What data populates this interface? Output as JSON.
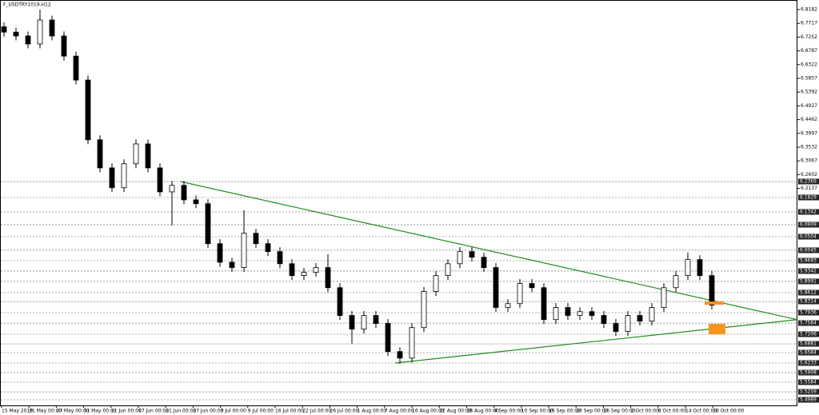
{
  "chart_data": {
    "type": "candlestick",
    "title": "F_USDTRY1019,H12",
    "xlabels": [
      "15 May 2019",
      "21 May 00:00",
      "27 May 00:00",
      "31 May 00:00",
      "11 Jun 00:00",
      "17 Jun 00:00",
      "21 Jun 00:00",
      "27 Jun 00:00",
      "3 Jul 00:00",
      "9 Jul 00:00",
      "16 Jul 00:00",
      "22 Jul 00:00",
      "26 Jul 00:00",
      "1 Aug 00:00",
      "7 Aug 00:00",
      "16 Aug 00:00",
      "22 Aug 00:00",
      "28 Aug 00:00",
      "4 Sep 00:00",
      "10 Sep 00:00",
      "16 Sep 00:00",
      "20 Sep 00:00",
      "26 Sep 00:00",
      "2 Oct 00:00",
      "8 Oct 00:00",
      "14 Oct 00:00",
      "18 Oct 00:00"
    ],
    "open": [
      6.76,
      6.742,
      6.729,
      6.702,
      6.783,
      6.729,
      6.661,
      6.58,
      6.378,
      6.283,
      6.216,
      6.297,
      6.364,
      6.283,
      6.202,
      6.224,
      6.175,
      6.162,
      6.027,
      5.964,
      5.946,
      6.062,
      6.027,
      6.0,
      5.959,
      5.919,
      5.93,
      5.946,
      5.878,
      5.784,
      5.738,
      5.784,
      5.757,
      5.662,
      5.64,
      5.743,
      5.865,
      5.919,
      5.959,
      6.0,
      5.981,
      5.946,
      5.811,
      5.824,
      5.892,
      5.878,
      5.77,
      5.811,
      5.784,
      5.797,
      5.784,
      5.757,
      5.73,
      5.784,
      5.765,
      5.811,
      5.878,
      5.919,
      5.973,
      5.919
    ],
    "high": [
      6.775,
      6.757,
      6.744,
      6.818,
      6.798,
      6.744,
      6.676,
      6.595,
      6.393,
      6.298,
      6.312,
      6.379,
      6.379,
      6.298,
      6.239,
      6.239,
      6.19,
      6.177,
      6.042,
      5.979,
      6.14,
      6.077,
      6.042,
      6.015,
      5.974,
      5.945,
      5.961,
      5.991,
      5.893,
      5.799,
      5.799,
      5.799,
      5.772,
      5.677,
      5.758,
      5.88,
      5.934,
      5.974,
      6.015,
      6.015,
      5.996,
      5.961,
      5.839,
      5.907,
      5.907,
      5.893,
      5.826,
      5.826,
      5.812,
      5.812,
      5.799,
      5.772,
      5.799,
      5.799,
      5.826,
      5.893,
      5.934,
      5.997,
      5.988,
      5.934
    ],
    "low": [
      6.727,
      6.714,
      6.687,
      6.687,
      6.714,
      6.646,
      6.565,
      6.363,
      6.268,
      6.201,
      6.201,
      6.282,
      6.268,
      6.187,
      6.089,
      6.16,
      6.147,
      6.012,
      5.949,
      5.931,
      5.931,
      6.012,
      5.985,
      5.944,
      5.904,
      5.904,
      5.915,
      5.863,
      5.769,
      5.689,
      5.723,
      5.742,
      5.647,
      5.621,
      5.625,
      5.728,
      5.85,
      5.904,
      5.944,
      5.966,
      5.931,
      5.796,
      5.796,
      5.809,
      5.863,
      5.755,
      5.755,
      5.769,
      5.769,
      5.769,
      5.742,
      5.715,
      5.715,
      5.75,
      5.75,
      5.796,
      5.863,
      5.904,
      5.904,
      5.804
    ],
    "close": [
      6.742,
      6.729,
      6.702,
      6.783,
      6.729,
      6.661,
      6.58,
      6.378,
      6.283,
      6.216,
      6.297,
      6.364,
      6.283,
      6.202,
      6.224,
      6.175,
      6.162,
      6.027,
      5.964,
      5.946,
      6.062,
      6.027,
      6.0,
      5.959,
      5.919,
      5.93,
      5.946,
      5.878,
      5.784,
      5.738,
      5.784,
      5.757,
      5.662,
      5.64,
      5.743,
      5.865,
      5.919,
      5.959,
      6.0,
      5.981,
      5.946,
      5.811,
      5.824,
      5.892,
      5.878,
      5.77,
      5.811,
      5.784,
      5.797,
      5.784,
      5.757,
      5.73,
      5.784,
      5.765,
      5.811,
      5.878,
      5.919,
      5.973,
      5.919,
      5.819
    ],
    "ylim": [
      5.48,
      6.8506
    ],
    "yticks": [
      6.8182,
      6.7717,
      6.7252,
      6.6787,
      6.6322,
      6.5857,
      6.5392,
      6.4927,
      6.4462,
      6.3997,
      6.3532,
      6.3067,
      6.2602,
      6.2137
    ],
    "levels": [
      6.2369,
      6.1829,
      6.1342,
      6.0909,
      6.0504,
      6.0045,
      5.9693,
      5.9342,
      5.8991,
      5.8612,
      5.8314,
      5.7936,
      5.7584,
      5.7206,
      5.6881,
      5.6584,
      5.6233,
      5.5908,
      5.5584,
      5.5259,
      5.4989
    ],
    "trendlines": [
      {
        "x": [
          14.7,
          66.1
        ],
        "y": [
          6.2369,
          5.77
        ],
        "color": "#1e8c1e"
      },
      {
        "x": [
          32.6,
          66.1
        ],
        "y": [
          5.6233,
          5.77
        ],
        "color": "#1e8c1e"
      }
    ],
    "bull_color": "#ffffff",
    "bear_color": "#000000",
    "grid": true
  }
}
